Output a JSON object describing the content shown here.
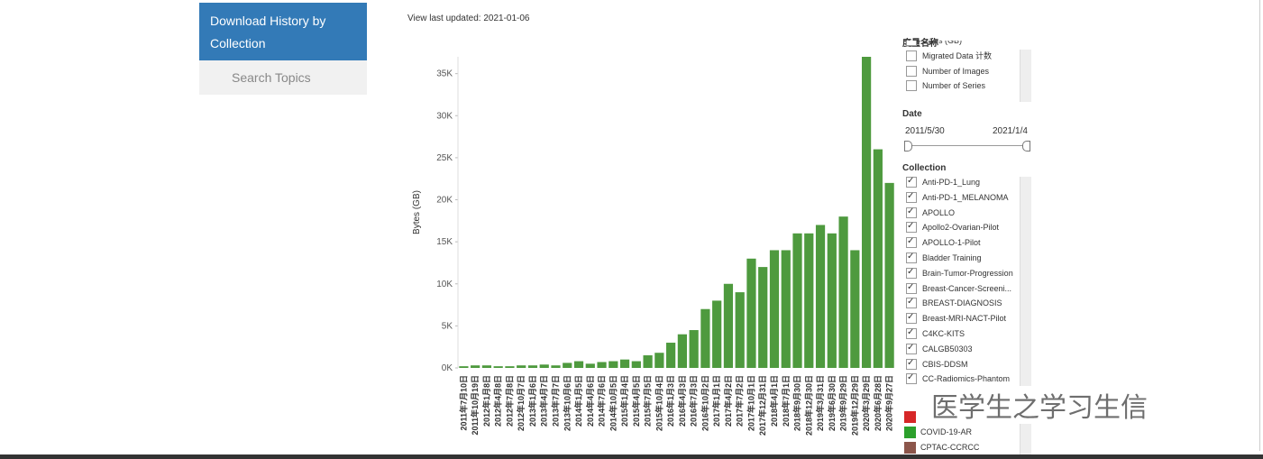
{
  "sidebar": {
    "items": [
      "Download History by Collection",
      "Search Topics"
    ]
  },
  "updated": "View last updated: 2021-01-06",
  "chart_data": {
    "type": "bar",
    "ylabel": "Bytes (GB)",
    "color": "#4e9a3e",
    "categories": [
      "2011年7月10日",
      "2011年10月19日",
      "2012年1月8日",
      "2012年4月8日",
      "2012年7月8日",
      "2012年10月7日",
      "2013年1月6日",
      "2013年4月7日",
      "2013年7月7日",
      "2013年10月6日",
      "2014年1月5日",
      "2014年4月6日",
      "2014年7月6日",
      "2014年10月5日",
      "2015年1月4日",
      "2015年4月5日",
      "2015年7月5日",
      "2015年10月4日",
      "2016年1月3日",
      "2016年4月3日",
      "2016年7月3日",
      "2016年10月2日",
      "2017年1月1日",
      "2017年4月2日",
      "2017年7月2日",
      "2017年10月1日",
      "2017年12月31日",
      "2018年4月1日",
      "2018年7月1日",
      "2018年9月30日",
      "2018年12月30日",
      "2019年3月31日",
      "2019年6月30日",
      "2019年9月29日",
      "2019年12月29日",
      "2020年3月29日",
      "2020年6月28日",
      "2020年9月27日"
    ],
    "values": [
      200,
      300,
      300,
      200,
      200,
      300,
      300,
      400,
      300,
      600,
      800,
      500,
      700,
      800,
      1000,
      800,
      1500,
      1800,
      3000,
      4000,
      4500,
      7000,
      8000,
      10000,
      9000,
      13000,
      12000,
      14000,
      14000,
      16000,
      16000,
      17000,
      16000,
      18000,
      14000,
      37000,
      26000,
      22000
    ],
    "ylim": [
      0,
      37000
    ],
    "yticks": [
      {
        "value": 0,
        "label": "0K"
      },
      {
        "value": 5000,
        "label": "5K"
      },
      {
        "value": 10000,
        "label": "10K"
      },
      {
        "value": 15000,
        "label": "15K"
      },
      {
        "value": 20000,
        "label": "20K"
      },
      {
        "value": 25000,
        "label": "25K"
      },
      {
        "value": 30000,
        "label": "30K"
      },
      {
        "value": 35000,
        "label": "35K"
      }
    ]
  },
  "panel": {
    "measure_title": "度量名称",
    "measures": [
      "Bytes (GB)",
      "Migrated Data 计数",
      "Number of Images",
      "Number of Series"
    ],
    "date_title": "Date",
    "date_start": "2011/5/30",
    "date_end": "2021/1/4",
    "collection_title": "Collection",
    "collections": [
      "Anti-PD-1_Lung",
      "Anti-PD-1_MELANOMA",
      "APOLLO",
      "Apollo2-Ovarian-Pilot",
      "APOLLO-1-Pilot",
      "Bladder Training",
      "Brain-Tumor-Progression",
      "Breast-Cancer-Screeni...",
      "BREAST-DIAGNOSIS",
      "Breast-MRI-NACT-Pilot",
      "C4KC-KITS",
      "CALGB50303",
      "CBIS-DDSM",
      "CC-Radiomics-Phantom"
    ],
    "legend": [
      {
        "name": "COVID-19-AR",
        "color": "#2ca02c"
      },
      {
        "name": "CPTAC-CCRCC",
        "color": "#8c564b"
      }
    ]
  },
  "watermark": "医学生之学习生信"
}
